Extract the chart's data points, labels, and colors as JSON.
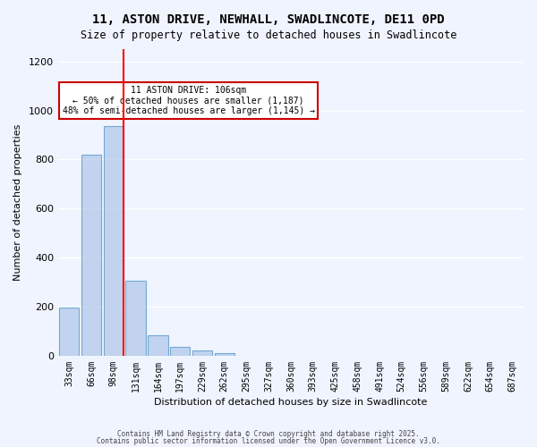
{
  "title1": "11, ASTON DRIVE, NEWHALL, SWADLINCOTE, DE11 0PD",
  "title2": "Size of property relative to detached houses in Swadlincote",
  "xlabel": "Distribution of detached houses by size in Swadlincote",
  "ylabel": "Number of detached properties",
  "categories": [
    "33sqm",
    "66sqm",
    "98sqm",
    "131sqm",
    "164sqm",
    "197sqm",
    "229sqm",
    "262sqm",
    "295sqm",
    "327sqm",
    "360sqm",
    "393sqm",
    "425sqm",
    "458sqm",
    "491sqm",
    "524sqm",
    "556sqm",
    "589sqm",
    "622sqm",
    "654sqm",
    "687sqm"
  ],
  "values": [
    195,
    820,
    935,
    305,
    85,
    35,
    20,
    10,
    0,
    0,
    0,
    0,
    0,
    0,
    0,
    0,
    0,
    0,
    0,
    0,
    0
  ],
  "bar_color": "#aec6e8",
  "bar_edgecolor": "#4a90c4",
  "bar_alpha": 0.7,
  "redline_x": 2,
  "redline_label": "98sqm",
  "annotation_title": "11 ASTON DRIVE: 106sqm",
  "annotation_line2": "← 50% of detached houses are smaller (1,187)",
  "annotation_line3": "48% of semi-detached houses are larger (1,145) →",
  "annotation_box_color": "#ffffff",
  "annotation_box_edgecolor": "#cc0000",
  "ylim": [
    0,
    1250
  ],
  "yticks": [
    0,
    200,
    400,
    600,
    800,
    1000,
    1200
  ],
  "bg_color": "#f0f4ff",
  "grid_color": "#ffffff",
  "footer1": "Contains HM Land Registry data © Crown copyright and database right 2025.",
  "footer2": "Contains public sector information licensed under the Open Government Licence v3.0."
}
